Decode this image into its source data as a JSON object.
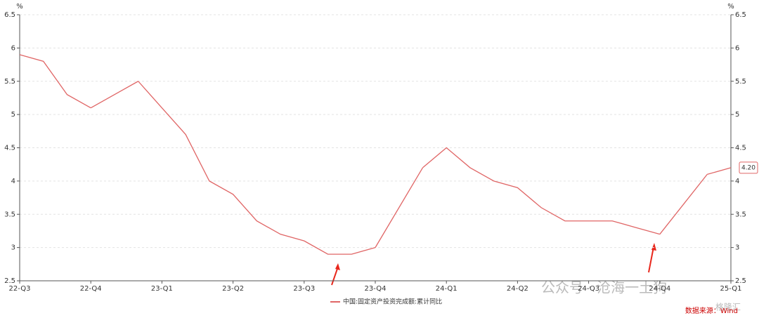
{
  "chart_data": {
    "type": "line",
    "categories": [
      "22-Q3",
      null,
      null,
      "22-Q4",
      null,
      null,
      "23-Q1",
      null,
      null,
      "23-Q2",
      null,
      null,
      "23-Q3",
      null,
      null,
      "23-Q4",
      null,
      null,
      "24-Q1",
      null,
      null,
      "24-Q2",
      null,
      null,
      "24-Q3",
      null,
      null,
      "24-Q4",
      null,
      null,
      "25-Q1"
    ],
    "series": [
      {
        "name": "中国:固定资产投资完成额:累计同比",
        "color": "#e06666",
        "values": [
          5.9,
          5.8,
          5.3,
          5.1,
          null,
          5.5,
          5.1,
          4.7,
          4.0,
          3.8,
          3.4,
          3.2,
          3.1,
          2.9,
          2.9,
          3.0,
          null,
          4.2,
          4.5,
          4.2,
          4.0,
          3.9,
          3.6,
          3.4,
          3.4,
          3.4,
          3.3,
          3.2,
          null,
          4.1,
          4.2
        ],
        "value_labels": [
          null,
          null,
          null,
          null,
          null,
          null,
          null,
          null,
          null,
          null,
          null,
          null,
          null,
          null,
          null,
          null,
          null,
          null,
          null,
          null,
          null,
          null,
          null,
          null,
          null,
          null,
          null,
          null,
          null,
          null,
          "4.20"
        ]
      }
    ],
    "ylabel": "%",
    "y2label": "%",
    "ylim": [
      2.5,
      6.5
    ],
    "yticks": [
      2.5,
      3,
      3.5,
      4,
      4.5,
      5,
      5.5,
      6,
      6.5
    ],
    "y2lim": [
      2.5,
      6.5
    ],
    "y2ticks": [
      2.5,
      3,
      3.5,
      4,
      4.5,
      5,
      5.5,
      6,
      6.5
    ],
    "grid": true,
    "legend": "bottom",
    "source": "数据来源：Wind",
    "watermarks": [
      "公众号 · 沧海一土狗",
      "格隆汇"
    ]
  }
}
